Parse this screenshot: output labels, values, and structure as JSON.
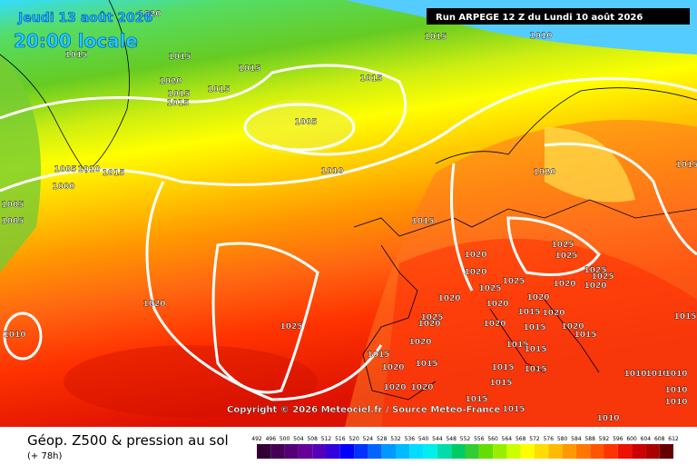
{
  "header": {
    "date": "Jeudi 13 août 2026",
    "time": "20:00 locale",
    "run": "Run ARPEGE 12 Z du Lundi 10 août 2026"
  },
  "copyright": "Copyright © 2026 Meteociel.fr / Source Météo-France",
  "footer": {
    "title": "Géop. Z500 & pression au sol",
    "lead": "(+ 78h)"
  },
  "legend": {
    "labels": [
      492,
      496,
      500,
      504,
      508,
      512,
      516,
      520,
      524,
      528,
      532,
      536,
      540,
      544,
      548,
      552,
      556,
      560,
      564,
      568,
      572,
      576,
      580,
      584,
      588,
      592,
      596,
      600,
      604,
      608,
      612
    ]
  },
  "isobar_labels": [
    "1020",
    "1015",
    "1010",
    "1015",
    "1015",
    "1015",
    "1020",
    "1015",
    "1015",
    "1015",
    "1015",
    "1005",
    "1005",
    "1010",
    "1015",
    "1000",
    "1010",
    "1005",
    "1005",
    "1020",
    "1015",
    "1015",
    "1025",
    "1025",
    "1020",
    "1020",
    "1025",
    "1025",
    "1025",
    "1025",
    "1020",
    "1020",
    "1020",
    "1020",
    "1020",
    "1020",
    "1025",
    "1010",
    "1025",
    "1020",
    "1020",
    "1015",
    "1020",
    "1020",
    "1015",
    "1020",
    "1015",
    "1015",
    "1015",
    "1015",
    "1020",
    "1015",
    "1015",
    "1015",
    "1010",
    "1010",
    "1010",
    "1020",
    "1020",
    "1015",
    "1015",
    "1015",
    "1015",
    "1010",
    "1010",
    "1010"
  ]
}
